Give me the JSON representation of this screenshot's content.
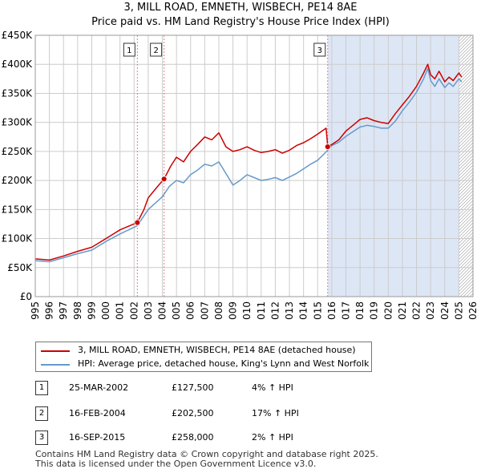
{
  "header": {
    "title": "3, MILL ROAD, EMNETH, WISBECH, PE14 8AE",
    "subtitle": "Price paid vs. HM Land Registry's House Price Index (HPI)"
  },
  "colors": {
    "property": "#cc0000",
    "hpi": "#6699cc",
    "shade": "#dde6f5",
    "grid": "#cccccc",
    "marker_line": "#e08080"
  },
  "chart_data": {
    "type": "line",
    "title": "Price paid vs. HM Land Registry's House Price Index (HPI)",
    "xlabel": "",
    "ylabel": "",
    "xlim": [
      1995,
      2026
    ],
    "ylim": [
      0,
      450000
    ],
    "x_ticks": [
      "1995",
      "1996",
      "1997",
      "1998",
      "1999",
      "2000",
      "2001",
      "2002",
      "2003",
      "2004",
      "2005",
      "2006",
      "2007",
      "2008",
      "2009",
      "2010",
      "2011",
      "2012",
      "2013",
      "2014",
      "2015",
      "2016",
      "2017",
      "2018",
      "2019",
      "2020",
      "2021",
      "2022",
      "2023",
      "2024",
      "2025",
      "2026"
    ],
    "y_ticks": [
      {
        "value": 0,
        "label": "£0"
      },
      {
        "value": 50000,
        "label": "£50K"
      },
      {
        "value": 100000,
        "label": "£100K"
      },
      {
        "value": 150000,
        "label": "£150K"
      },
      {
        "value": 200000,
        "label": "£200K"
      },
      {
        "value": 250000,
        "label": "£250K"
      },
      {
        "value": 300000,
        "label": "£300K"
      },
      {
        "value": 350000,
        "label": "£350K"
      },
      {
        "value": 400000,
        "label": "£400K"
      },
      {
        "value": 450000,
        "label": "£450K"
      }
    ],
    "grid": true,
    "shaded_ranges": [
      [
        2015.71,
        2025.0
      ]
    ],
    "hatched_from": 2025.0,
    "series": [
      {
        "name": "3, MILL ROAD, EMNETH, WISBECH, PE14 8AE (detached house)",
        "x": [
          1995,
          1996,
          1997,
          1998,
          1999,
          2000,
          2001,
          2002.23,
          2002.7,
          2003,
          2003.5,
          2004.12,
          2004.6,
          2005,
          2005.5,
          2006,
          2006.5,
          2007,
          2007.5,
          2008,
          2008.5,
          2009,
          2009.5,
          2010,
          2010.5,
          2011,
          2011.5,
          2012,
          2012.5,
          2013,
          2013.5,
          2014,
          2014.5,
          2015,
          2015.6,
          2015.71,
          2016,
          2016.5,
          2017,
          2017.5,
          2018,
          2018.5,
          2019,
          2019.5,
          2020,
          2020.5,
          2021,
          2021.5,
          2022,
          2022.5,
          2022.8,
          2023,
          2023.3,
          2023.6,
          2024,
          2024.3,
          2024.6,
          2025,
          2025.2
        ],
        "values": [
          65000,
          63000,
          70000,
          78000,
          85000,
          100000,
          115000,
          127500,
          150000,
          170000,
          185000,
          202500,
          225000,
          240000,
          232000,
          250000,
          262000,
          275000,
          270000,
          282000,
          258000,
          250000,
          253000,
          258000,
          252000,
          248000,
          250000,
          253000,
          247000,
          252000,
          260000,
          265000,
          272000,
          280000,
          290000,
          258000,
          262000,
          270000,
          285000,
          295000,
          305000,
          308000,
          303000,
          300000,
          298000,
          315000,
          330000,
          345000,
          362000,
          385000,
          400000,
          382000,
          375000,
          388000,
          370000,
          378000,
          372000,
          385000,
          378000
        ]
      },
      {
        "name": "HPI: Average price, detached house, King's Lynn and West Norfolk",
        "x": [
          1995,
          1996,
          1997,
          1998,
          1999,
          2000,
          2001,
          2002.23,
          2003,
          2004,
          2004.5,
          2005,
          2005.5,
          2006,
          2006.5,
          2007,
          2007.5,
          2008,
          2008.5,
          2009,
          2009.5,
          2010,
          2010.5,
          2011,
          2011.5,
          2012,
          2012.5,
          2013,
          2013.5,
          2014,
          2014.5,
          2015,
          2015.71,
          2016,
          2016.5,
          2017,
          2017.5,
          2018,
          2018.5,
          2019,
          2019.5,
          2020,
          2020.5,
          2021,
          2021.5,
          2022,
          2022.5,
          2022.8,
          2023,
          2023.3,
          2023.6,
          2024,
          2024.3,
          2024.6,
          2025,
          2025.2
        ],
        "values": [
          62000,
          60000,
          67000,
          74000,
          80000,
          95000,
          108000,
          122000,
          150000,
          172000,
          190000,
          200000,
          196000,
          210000,
          218000,
          228000,
          225000,
          232000,
          212000,
          192000,
          200000,
          210000,
          205000,
          200000,
          202000,
          205000,
          200000,
          206000,
          212000,
          220000,
          228000,
          235000,
          252000,
          260000,
          266000,
          276000,
          284000,
          292000,
          295000,
          293000,
          290000,
          290000,
          302000,
          320000,
          335000,
          352000,
          375000,
          393000,
          372000,
          362000,
          375000,
          360000,
          368000,
          362000,
          375000,
          370000
        ]
      }
    ],
    "sales": [
      {
        "num": "1",
        "x": 2002.23,
        "price": 127500,
        "date": "25-MAR-2002",
        "price_label": "£127,500",
        "hpi_label": "4% ↑ HPI"
      },
      {
        "num": "2",
        "x": 2004.12,
        "price": 202500,
        "date": "16-FEB-2004",
        "price_label": "£202,500",
        "hpi_label": "17% ↑ HPI"
      },
      {
        "num": "3",
        "x": 2015.71,
        "price": 258000,
        "date": "16-SEP-2015",
        "price_label": "£258,000",
        "hpi_label": "2% ↑ HPI"
      }
    ]
  },
  "legend": {
    "property_label": "3, MILL ROAD, EMNETH, WISBECH, PE14 8AE (detached house)",
    "hpi_label": "HPI: Average price, detached house, King's Lynn and West Norfolk"
  },
  "footer": {
    "line1": "Contains HM Land Registry data © Crown copyright and database right 2025.",
    "line2": "This data is licensed under the Open Government Licence v3.0."
  }
}
